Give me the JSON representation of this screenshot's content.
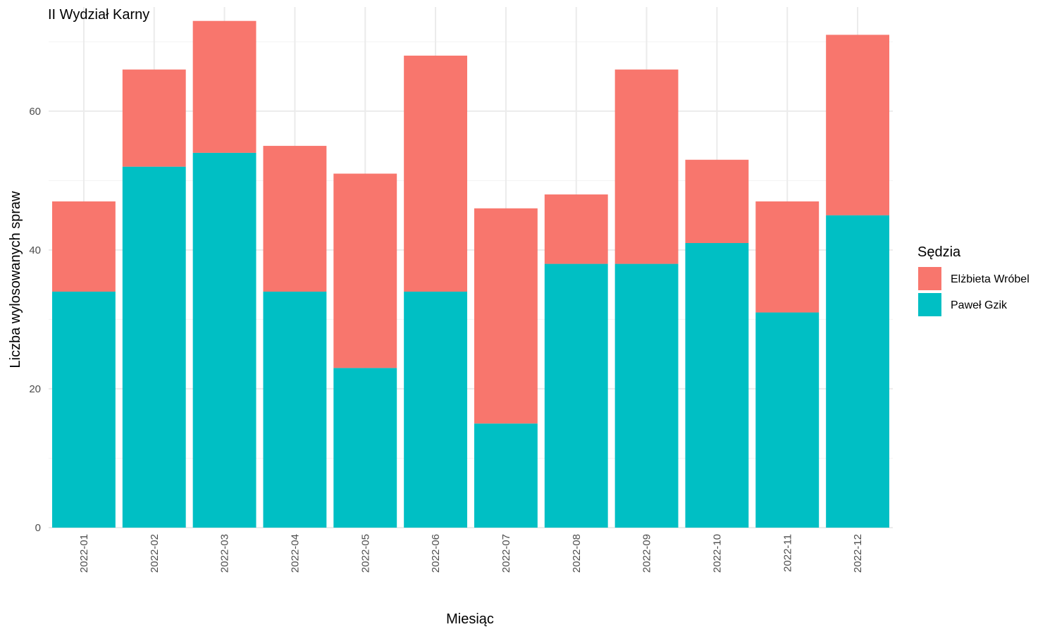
{
  "chart_data": {
    "type": "bar",
    "stacked": true,
    "title": "II Wydział Karny",
    "xlabel": "Miesiąc",
    "ylabel": "Liczba wylosowanych spraw",
    "ylim": [
      0,
      75
    ],
    "yticks": [
      0,
      20,
      40,
      60
    ],
    "grid": true,
    "legend_position": "right",
    "legend_title": "Sędzia",
    "categories": [
      "2022-01",
      "2022-02",
      "2022-03",
      "2022-04",
      "2022-05",
      "2022-06",
      "2022-07",
      "2022-08",
      "2022-09",
      "2022-10",
      "2022-11",
      "2022-12"
    ],
    "series": [
      {
        "name": "Paweł Gzik",
        "color": "#00BFC4",
        "values": [
          34,
          52,
          54,
          34,
          23,
          34,
          15,
          38,
          38,
          41,
          31,
          45
        ]
      },
      {
        "name": "Elżbieta Wróbel",
        "color": "#F8766D",
        "values": [
          13,
          14,
          19,
          21,
          28,
          34,
          31,
          10,
          28,
          12,
          16,
          26
        ]
      }
    ],
    "legend_order": [
      1,
      0
    ]
  }
}
